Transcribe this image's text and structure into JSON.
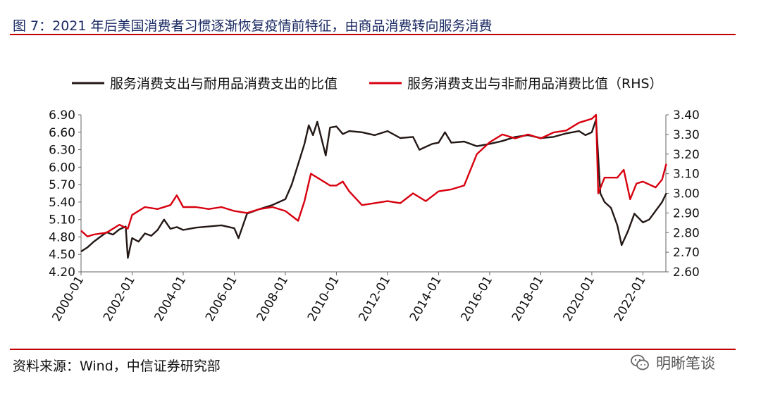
{
  "header": {
    "figure_title": "图 7：2021 年后美国消费者习惯逐渐恢复疫情前特征，由商品消费转向服务消费"
  },
  "footer": {
    "source_text": "资料来源：Wind，中信证券研究部",
    "watermark_text": "明晰笔谈",
    "watermark_icon": "wechat-logo-icon"
  },
  "colors": {
    "series_black": "#231815",
    "series_red": "#d7000f",
    "title": "#1b2a63",
    "rule": "#c00000"
  },
  "chart_data": {
    "type": "line",
    "title": "",
    "legend_position": "top",
    "grid": false,
    "x_ticks": [
      "2000-01",
      "2002-01",
      "2004-01",
      "2006-01",
      "2008-01",
      "2010-01",
      "2012-01",
      "2014-01",
      "2016-01",
      "2018-01",
      "2020-01",
      "2022-01"
    ],
    "x_range": [
      2000.0,
      2022.9
    ],
    "y_left": {
      "range": [
        4.2,
        6.9
      ],
      "ticks": [
        "4.20",
        "4.50",
        "4.80",
        "5.10",
        "5.40",
        "5.70",
        "6.00",
        "6.30",
        "6.60",
        "6.90"
      ]
    },
    "y_right": {
      "range": [
        2.6,
        3.4
      ],
      "ticks": [
        "2.60",
        "2.70",
        "2.80",
        "2.90",
        "3.00",
        "3.10",
        "3.20",
        "3.30",
        "3.40"
      ]
    },
    "series": [
      {
        "name": "服务消费支出与耐用品消费支出的比值",
        "axis": "left",
        "points": [
          [
            "2000-01",
            4.55
          ],
          [
            "2000-04",
            4.62
          ],
          [
            "2000-07",
            4.72
          ],
          [
            "2000-10",
            4.8
          ],
          [
            "2001-01",
            4.88
          ],
          [
            "2001-04",
            4.84
          ],
          [
            "2001-07",
            4.93
          ],
          [
            "2001-10",
            4.98
          ],
          [
            "2001-11",
            4.44
          ],
          [
            "2002-01",
            4.78
          ],
          [
            "2002-04",
            4.72
          ],
          [
            "2002-07",
            4.86
          ],
          [
            "2002-10",
            4.82
          ],
          [
            "2003-01",
            4.92
          ],
          [
            "2003-04",
            5.1
          ],
          [
            "2003-07",
            4.94
          ],
          [
            "2003-10",
            4.97
          ],
          [
            "2004-01",
            4.92
          ],
          [
            "2004-07",
            4.96
          ],
          [
            "2005-01",
            4.98
          ],
          [
            "2005-07",
            5.0
          ],
          [
            "2006-01",
            4.95
          ],
          [
            "2006-03",
            4.78
          ],
          [
            "2006-07",
            5.2
          ],
          [
            "2007-01",
            5.28
          ],
          [
            "2007-07",
            5.35
          ],
          [
            "2008-01",
            5.45
          ],
          [
            "2008-04",
            5.7
          ],
          [
            "2008-07",
            6.05
          ],
          [
            "2008-10",
            6.4
          ],
          [
            "2008-12",
            6.72
          ],
          [
            "2009-02",
            6.55
          ],
          [
            "2009-04",
            6.78
          ],
          [
            "2009-08",
            6.2
          ],
          [
            "2009-10",
            6.68
          ],
          [
            "2010-01",
            6.7
          ],
          [
            "2010-04",
            6.57
          ],
          [
            "2010-07",
            6.62
          ],
          [
            "2011-01",
            6.6
          ],
          [
            "2011-07",
            6.55
          ],
          [
            "2012-01",
            6.62
          ],
          [
            "2012-07",
            6.5
          ],
          [
            "2013-01",
            6.52
          ],
          [
            "2013-04",
            6.3
          ],
          [
            "2013-10",
            6.4
          ],
          [
            "2014-01",
            6.42
          ],
          [
            "2014-04",
            6.6
          ],
          [
            "2014-07",
            6.42
          ],
          [
            "2015-01",
            6.44
          ],
          [
            "2015-07",
            6.36
          ],
          [
            "2016-01",
            6.4
          ],
          [
            "2016-07",
            6.45
          ],
          [
            "2017-01",
            6.52
          ],
          [
            "2017-07",
            6.55
          ],
          [
            "2018-01",
            6.5
          ],
          [
            "2018-07",
            6.52
          ],
          [
            "2019-01",
            6.58
          ],
          [
            "2019-07",
            6.62
          ],
          [
            "2019-10",
            6.55
          ],
          [
            "2020-01",
            6.6
          ],
          [
            "2020-03",
            6.82
          ],
          [
            "2020-05",
            5.55
          ],
          [
            "2020-07",
            5.4
          ],
          [
            "2020-10",
            5.3
          ],
          [
            "2021-01",
            5.0
          ],
          [
            "2021-03",
            4.66
          ],
          [
            "2021-06",
            4.9
          ],
          [
            "2021-09",
            5.2
          ],
          [
            "2022-01",
            5.05
          ],
          [
            "2022-04",
            5.1
          ],
          [
            "2022-07",
            5.25
          ],
          [
            "2022-10",
            5.4
          ],
          [
            "2022-12",
            5.55
          ]
        ]
      },
      {
        "name": "服务消费支出与非耐用品消费比值（RHS）",
        "axis": "right",
        "points": [
          [
            "2000-01",
            2.81
          ],
          [
            "2000-04",
            2.78
          ],
          [
            "2000-07",
            2.79
          ],
          [
            "2001-01",
            2.8
          ],
          [
            "2001-07",
            2.84
          ],
          [
            "2001-11",
            2.82
          ],
          [
            "2002-01",
            2.89
          ],
          [
            "2002-07",
            2.93
          ],
          [
            "2003-01",
            2.92
          ],
          [
            "2003-07",
            2.94
          ],
          [
            "2003-10",
            2.99
          ],
          [
            "2004-01",
            2.93
          ],
          [
            "2004-07",
            2.93
          ],
          [
            "2005-01",
            2.92
          ],
          [
            "2005-07",
            2.93
          ],
          [
            "2006-01",
            2.91
          ],
          [
            "2006-07",
            2.9
          ],
          [
            "2007-01",
            2.92
          ],
          [
            "2007-07",
            2.93
          ],
          [
            "2008-01",
            2.91
          ],
          [
            "2008-07",
            2.86
          ],
          [
            "2008-10",
            2.96
          ],
          [
            "2009-01",
            3.1
          ],
          [
            "2009-04",
            3.08
          ],
          [
            "2009-10",
            3.04
          ],
          [
            "2010-01",
            3.04
          ],
          [
            "2010-04",
            3.06
          ],
          [
            "2010-07",
            3.01
          ],
          [
            "2011-01",
            2.94
          ],
          [
            "2011-07",
            2.95
          ],
          [
            "2012-01",
            2.96
          ],
          [
            "2012-07",
            2.95
          ],
          [
            "2013-01",
            3.0
          ],
          [
            "2013-07",
            2.96
          ],
          [
            "2014-01",
            3.01
          ],
          [
            "2014-07",
            3.02
          ],
          [
            "2015-01",
            3.04
          ],
          [
            "2015-07",
            3.2
          ],
          [
            "2016-01",
            3.26
          ],
          [
            "2016-07",
            3.3
          ],
          [
            "2017-01",
            3.28
          ],
          [
            "2017-07",
            3.3
          ],
          [
            "2018-01",
            3.28
          ],
          [
            "2018-07",
            3.31
          ],
          [
            "2019-01",
            3.32
          ],
          [
            "2019-07",
            3.36
          ],
          [
            "2020-01",
            3.38
          ],
          [
            "2020-03",
            3.4
          ],
          [
            "2020-04",
            3.0
          ],
          [
            "2020-07",
            3.08
          ],
          [
            "2021-01",
            3.08
          ],
          [
            "2021-04",
            3.12
          ],
          [
            "2021-07",
            2.97
          ],
          [
            "2021-10",
            3.05
          ],
          [
            "2022-01",
            3.06
          ],
          [
            "2022-07",
            3.03
          ],
          [
            "2022-10",
            3.07
          ],
          [
            "2022-12",
            3.15
          ]
        ]
      }
    ]
  }
}
